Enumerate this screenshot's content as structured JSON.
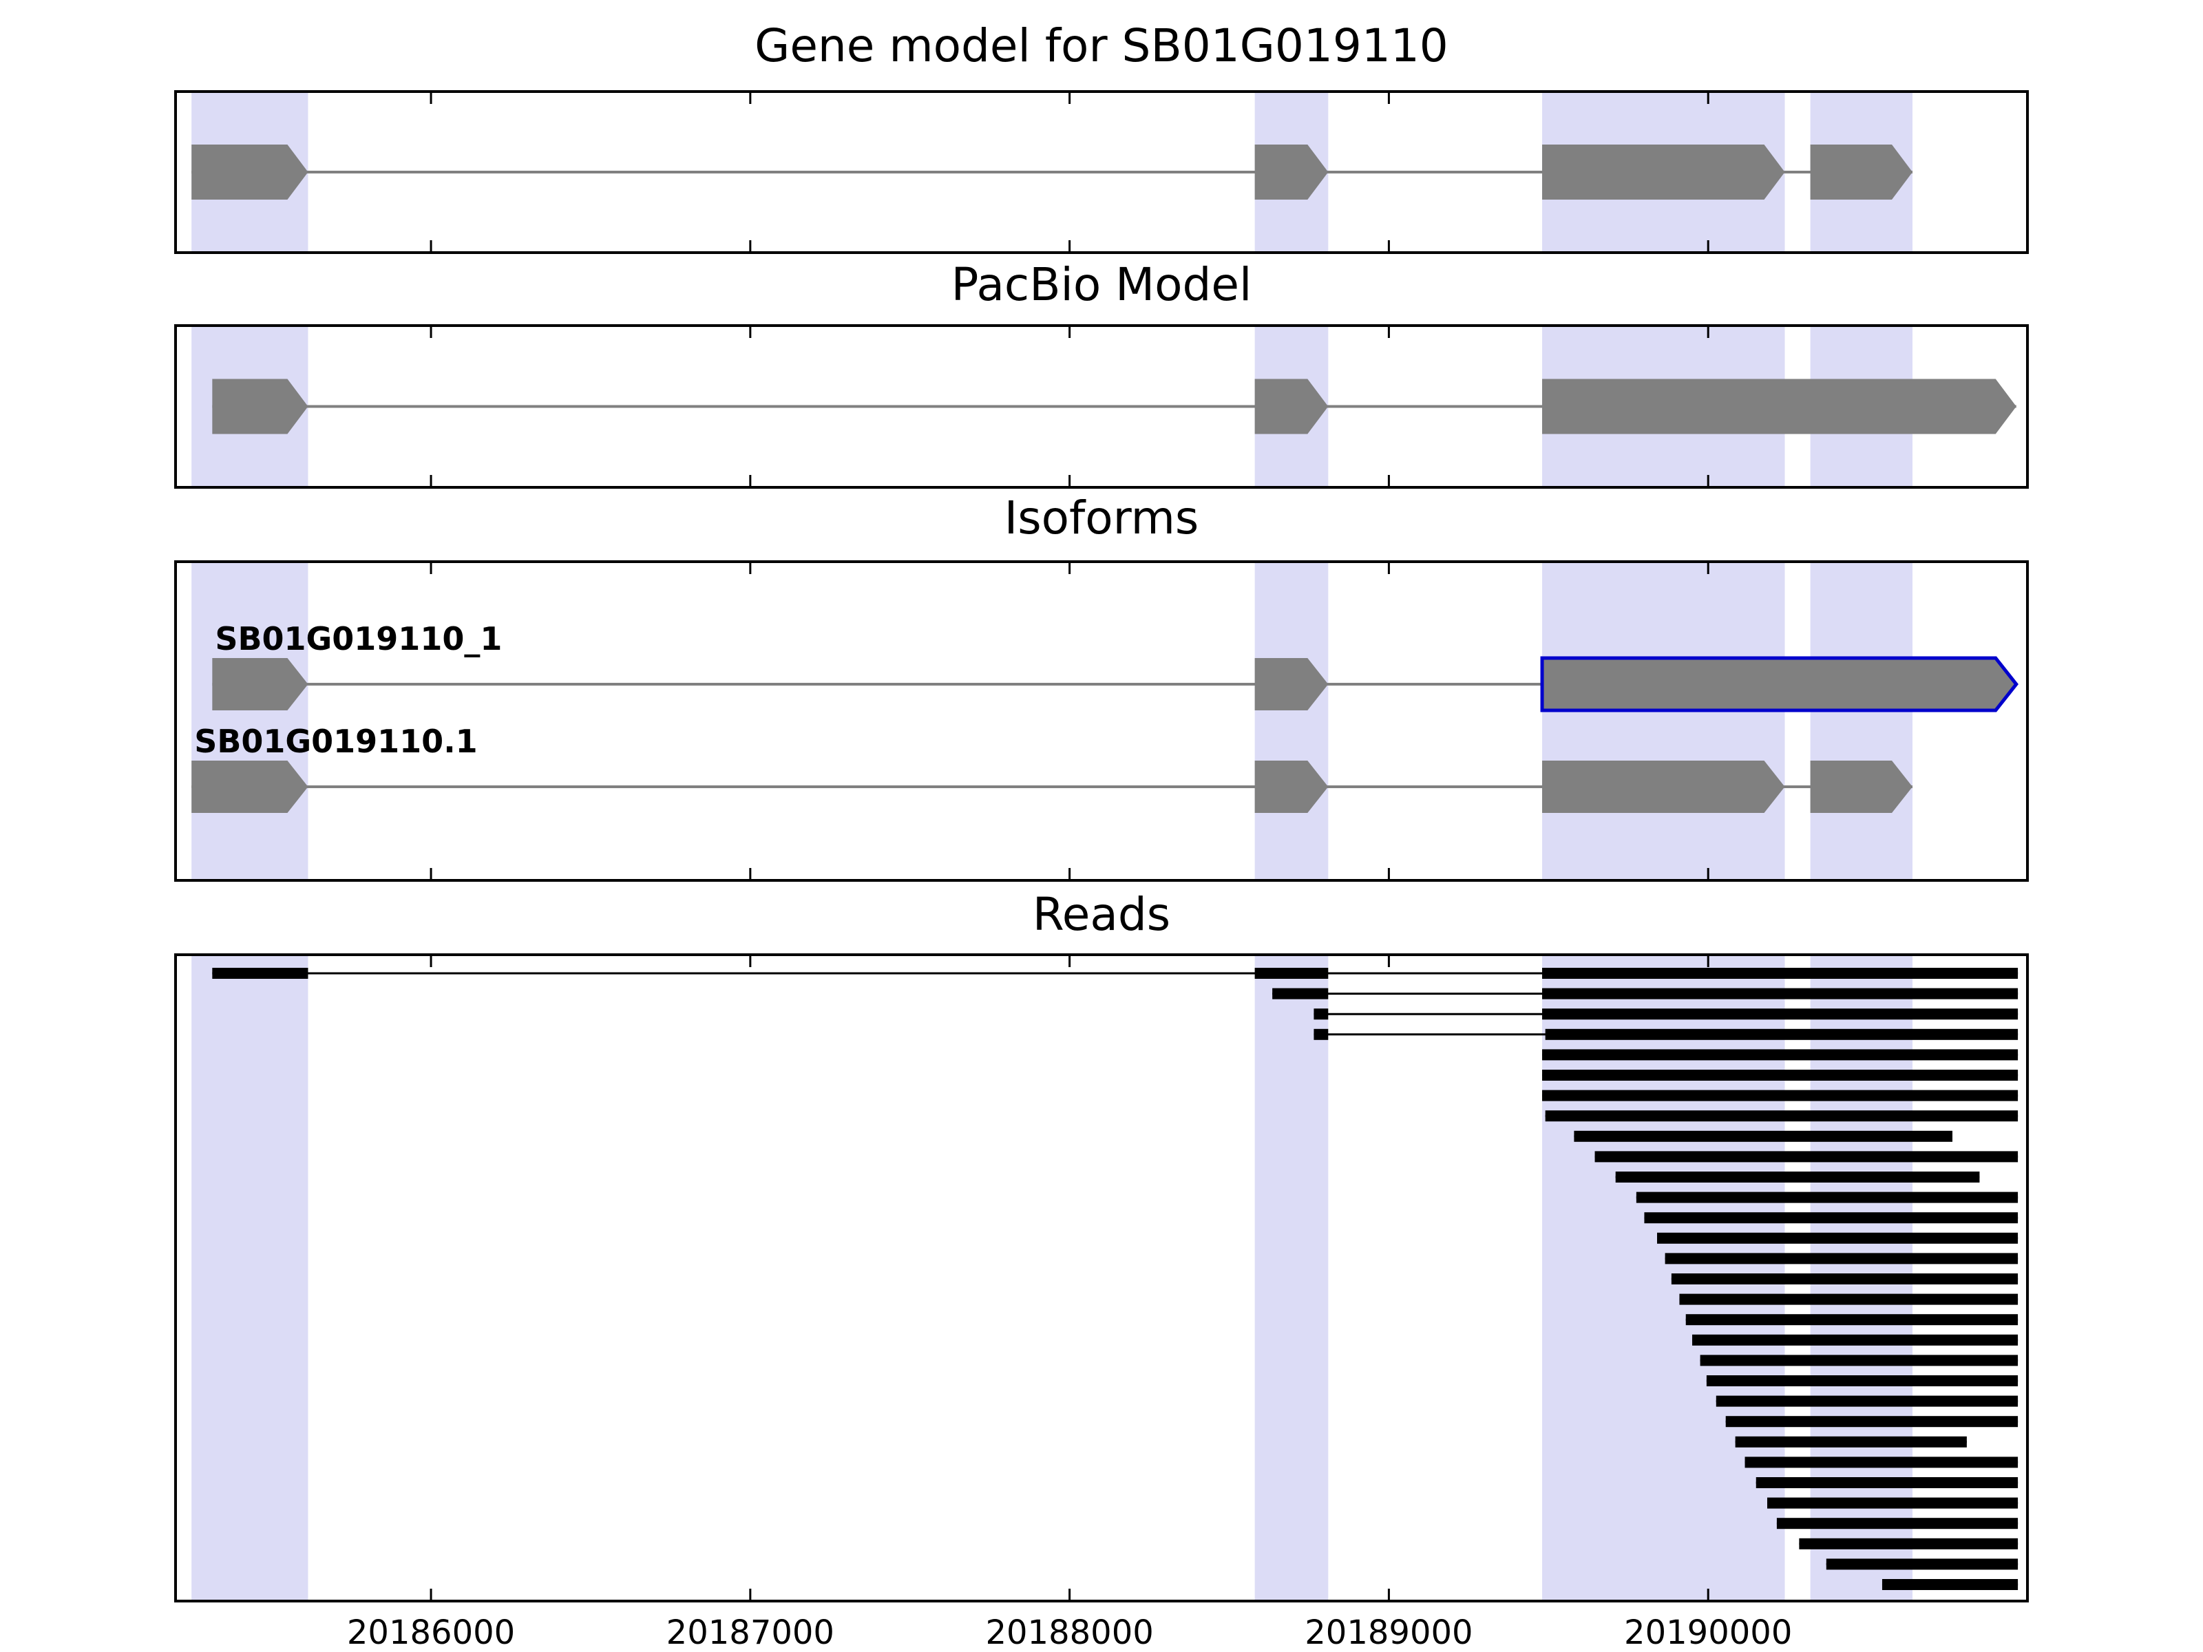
{
  "figure": {
    "background": "#ffffff"
  },
  "chart_data": {
    "type": "genome-browser",
    "title": "Gene model for SB01G019110",
    "grid": false,
    "legend": "none",
    "x_axis": {
      "min": 20185200,
      "max": 20191000,
      "ticks": [
        20186000,
        20187000,
        20188000,
        20189000,
        20190000
      ],
      "tick_labels": [
        "20186000",
        "20187000",
        "20188000",
        "20189000",
        "20190000"
      ]
    },
    "highlight_regions": [
      [
        20185250,
        20185615
      ],
      [
        20188580,
        20188810
      ],
      [
        20189480,
        20190240
      ],
      [
        20190320,
        20190640
      ]
    ],
    "colors": {
      "exon": "#808080",
      "intron_line": "#808080",
      "read": "#000000",
      "highlight": "#dcdcf6",
      "isoform_outline": "#0000cc",
      "axis": "#000000",
      "background": "#ffffff"
    },
    "panels": [
      {
        "key": "gene_model",
        "title": "Gene model for SB01G019110",
        "transcripts": [
          {
            "id": "SB01G019110",
            "strand": "+",
            "exons": [
              [
                20185250,
                20185615
              ],
              [
                20188580,
                20188810
              ],
              [
                20189480,
                20190240
              ],
              [
                20190320,
                20190640
              ]
            ]
          }
        ]
      },
      {
        "key": "pacbio_model",
        "title": "PacBio Model",
        "transcripts": [
          {
            "id": "PacBio_model",
            "strand": "+",
            "exons": [
              [
                20185315,
                20185615
              ],
              [
                20188580,
                20188810
              ],
              [
                20189480,
                20190965
              ]
            ]
          }
        ]
      },
      {
        "key": "isoforms",
        "title": "Isoforms",
        "transcripts": [
          {
            "id": "SB01G019110_1",
            "label": "SB01G019110_1",
            "strand": "+",
            "outlined_exon_index": 2,
            "exons": [
              [
                20185315,
                20185615
              ],
              [
                20188580,
                20188810
              ],
              [
                20189480,
                20190965
              ]
            ]
          },
          {
            "id": "SB01G019110.1",
            "label": "SB01G019110.1",
            "strand": "+",
            "exons": [
              [
                20185250,
                20185615
              ],
              [
                20188580,
                20188810
              ],
              [
                20189480,
                20190240
              ],
              [
                20190320,
                20190640
              ]
            ]
          }
        ]
      },
      {
        "key": "reads",
        "title": "Reads",
        "reads": [
          [
            [
              20185315,
              20185615
            ],
            [
              20188580,
              20188810
            ],
            [
              20189480,
              20190970
            ]
          ],
          [
            [
              20188635,
              20188810
            ],
            [
              20189480,
              20190970
            ]
          ],
          [
            [
              20188765,
              20188810
            ],
            [
              20189480,
              20190970
            ]
          ],
          [
            [
              20188765,
              20188810
            ],
            [
              20189490,
              20190970
            ]
          ],
          [
            [
              20189480,
              20190970
            ]
          ],
          [
            [
              20189480,
              20190970
            ]
          ],
          [
            [
              20189480,
              20190970
            ]
          ],
          [
            [
              20189490,
              20190970
            ]
          ],
          [
            [
              20189580,
              20190765
            ]
          ],
          [
            [
              20189645,
              20190970
            ]
          ],
          [
            [
              20189710,
              20190850
            ]
          ],
          [
            [
              20189775,
              20190970
            ]
          ],
          [
            [
              20189800,
              20190970
            ]
          ],
          [
            [
              20189840,
              20190970
            ]
          ],
          [
            [
              20189865,
              20190970
            ]
          ],
          [
            [
              20189885,
              20190970
            ]
          ],
          [
            [
              20189910,
              20190970
            ]
          ],
          [
            [
              20189930,
              20190970
            ]
          ],
          [
            [
              20189950,
              20190970
            ]
          ],
          [
            [
              20189975,
              20190970
            ]
          ],
          [
            [
              20189995,
              20190970
            ]
          ],
          [
            [
              20190025,
              20190970
            ]
          ],
          [
            [
              20190055,
              20190970
            ]
          ],
          [
            [
              20190085,
              20190810
            ]
          ],
          [
            [
              20190115,
              20190970
            ]
          ],
          [
            [
              20190150,
              20190970
            ]
          ],
          [
            [
              20190185,
              20190970
            ]
          ],
          [
            [
              20190215,
              20190970
            ]
          ],
          [
            [
              20190285,
              20190970
            ]
          ],
          [
            [
              20190370,
              20190970
            ]
          ],
          [
            [
              20190545,
              20190970
            ]
          ]
        ]
      }
    ]
  }
}
